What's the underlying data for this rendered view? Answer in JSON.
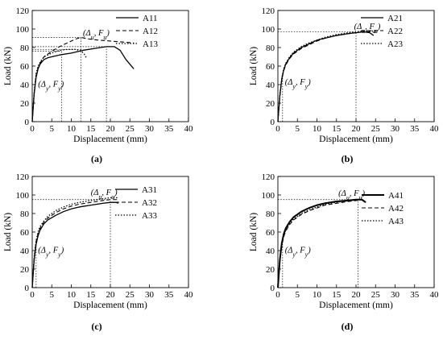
{
  "chart_data": [
    {
      "type": "line",
      "panel_label": "(a)",
      "xlabel": "Displacement (mm)",
      "ylabel": "Load (kN)",
      "xlim": [
        0,
        40
      ],
      "ylim": [
        0,
        120
      ],
      "xticks": [
        0,
        5,
        10,
        15,
        20,
        25,
        30,
        35,
        40
      ],
      "yticks": [
        0,
        20,
        40,
        60,
        80,
        100,
        120
      ],
      "legend_position": "top-right",
      "annotations": [
        {
          "label": "(Δu, Fu)",
          "x": 13,
          "y": 93
        },
        {
          "label": "(Δy, Fy)",
          "x": 1.5,
          "y": 38
        }
      ],
      "reference_lines": [
        {
          "y": 91,
          "x_end": 12.5
        },
        {
          "y": 81,
          "x_end": 19
        },
        {
          "y": 76,
          "x_end": 7.5
        },
        {
          "y": 78,
          "x_end": 13
        },
        {
          "x": 7.5,
          "y_end": 76
        },
        {
          "x": 12.5,
          "y_end": 91
        },
        {
          "x": 19,
          "y_end": 81
        }
      ],
      "series": [
        {
          "name": "A11",
          "style": "solid",
          "x": [
            0,
            0.5,
            1,
            1.5,
            2,
            3,
            4,
            5,
            7,
            10,
            13,
            16,
            19,
            21,
            22.5,
            24,
            26
          ],
          "y": [
            0,
            30,
            48,
            57,
            62,
            67,
            69,
            70,
            72,
            74,
            77,
            79,
            81,
            81,
            77,
            67,
            57
          ]
        },
        {
          "name": "A12",
          "style": "dashed",
          "x": [
            0,
            0.5,
            1,
            1.5,
            2,
            3,
            5,
            7,
            9,
            11,
            12.5,
            14,
            17,
            20,
            23,
            26
          ],
          "y": [
            0,
            30,
            50,
            58,
            63,
            70,
            76,
            81,
            85,
            89,
            91,
            89.5,
            88,
            87,
            86,
            85
          ]
        },
        {
          "name": "A13",
          "style": "dotted",
          "x": [
            0,
            0.5,
            1,
            1.5,
            2,
            3,
            5,
            7,
            9,
            11,
            12.5,
            13.3,
            14
          ],
          "y": [
            0,
            32,
            52,
            60,
            64,
            70,
            74,
            77,
            78,
            78,
            76.5,
            73,
            68
          ]
        }
      ]
    },
    {
      "type": "line",
      "panel_label": "(b)",
      "xlabel": "Displacement (mm)",
      "ylabel": "Load (kN)",
      "xlim": [
        0,
        40
      ],
      "ylim": [
        0,
        120
      ],
      "xticks": [
        0,
        5,
        10,
        15,
        20,
        25,
        30,
        35,
        40
      ],
      "yticks": [
        0,
        20,
        40,
        60,
        80,
        100,
        120
      ],
      "legend_position": "top-right",
      "annotations": [
        {
          "label": "(Δu, Fu)",
          "x": 19.5,
          "y": 100
        },
        {
          "label": "(Δy, Fy)",
          "x": 1.8,
          "y": 40
        }
      ],
      "reference_lines": [
        {
          "y": 97,
          "x_end": 20
        },
        {
          "x": 20,
          "y_end": 97
        },
        {
          "x": 1.2,
          "y_end": 50
        }
      ],
      "series": [
        {
          "name": "A21",
          "style": "solid",
          "x": [
            0,
            0.5,
            1,
            1.5,
            2,
            3,
            4,
            6,
            8,
            10,
            12,
            15,
            18,
            20,
            22,
            23.5,
            24.5
          ],
          "y": [
            0,
            28,
            46,
            56,
            62,
            69,
            74,
            80,
            84,
            88,
            90,
            93,
            95,
            96,
            97,
            96,
            93
          ]
        },
        {
          "name": "A22",
          "style": "dashed",
          "x": [
            0,
            0.5,
            1,
            1.5,
            2,
            3,
            4,
            6,
            8,
            10,
            12,
            15,
            18,
            20,
            22,
            24,
            25
          ],
          "y": [
            0,
            27,
            45,
            55,
            61,
            68,
            73,
            79,
            83,
            87,
            90,
            93,
            95,
            96,
            97,
            97,
            96
          ]
        },
        {
          "name": "A23",
          "style": "dotted",
          "x": [
            0,
            0.5,
            1,
            1.5,
            2,
            3,
            4,
            6,
            8,
            10,
            12,
            15,
            18,
            20,
            22,
            24,
            25.5
          ],
          "y": [
            0,
            29,
            47,
            57,
            63,
            70,
            75,
            81,
            85,
            88,
            91,
            94,
            96,
            97,
            98,
            98,
            97
          ]
        }
      ]
    },
    {
      "type": "line",
      "panel_label": "(c)",
      "xlabel": "Displacement (mm)",
      "ylabel": "Load (kN)",
      "xlim": [
        0,
        40
      ],
      "ylim": [
        0,
        120
      ],
      "xticks": [
        0,
        5,
        10,
        15,
        20,
        25,
        30,
        35,
        40
      ],
      "yticks": [
        0,
        20,
        40,
        60,
        80,
        100,
        120
      ],
      "legend_position": "top-right",
      "annotations": [
        {
          "label": "(Δu, Fu)",
          "x": 15,
          "y": 100
        },
        {
          "label": "(Δy, Fy)",
          "x": 1.5,
          "y": 38
        }
      ],
      "reference_lines": [
        {
          "y": 95,
          "x_end": 20
        },
        {
          "x": 20,
          "y_end": 95
        },
        {
          "x": 1.0,
          "y_end": 50
        }
      ],
      "series": [
        {
          "name": "A31",
          "style": "solid",
          "x": [
            0,
            0.5,
            1,
            1.5,
            2,
            3,
            4,
            6,
            8,
            10,
            12,
            15,
            18,
            20,
            21.5,
            22
          ],
          "y": [
            0,
            30,
            47,
            56,
            62,
            69,
            73,
            78,
            82,
            85,
            87,
            89,
            91,
            92,
            92,
            91
          ]
        },
        {
          "name": "A32",
          "style": "dashed",
          "x": [
            0,
            0.5,
            1,
            1.5,
            2,
            3,
            4,
            6,
            8,
            10,
            12,
            15,
            18,
            20,
            22
          ],
          "y": [
            0,
            32,
            50,
            58,
            64,
            71,
            75,
            81,
            85,
            88,
            90,
            92,
            94,
            95,
            95
          ]
        },
        {
          "name": "A33",
          "style": "dotted",
          "x": [
            0,
            0.5,
            1,
            1.5,
            2,
            3,
            4,
            6,
            8,
            10,
            12,
            15,
            18,
            20,
            22
          ],
          "y": [
            0,
            33,
            51,
            60,
            66,
            72,
            77,
            83,
            87,
            90,
            92,
            94,
            96,
            97,
            97
          ]
        }
      ]
    },
    {
      "type": "line",
      "panel_label": "(d)",
      "xlabel": "Displacement (mm)",
      "ylabel": "Load (kN)",
      "xlim": [
        0,
        40
      ],
      "ylim": [
        0,
        120
      ],
      "xticks": [
        0,
        5,
        10,
        15,
        20,
        25,
        30,
        35,
        40
      ],
      "yticks": [
        0,
        20,
        40,
        60,
        80,
        100,
        120
      ],
      "legend_position": "top-right",
      "annotations": [
        {
          "label": "(Δu, Fu)",
          "x": 15.5,
          "y": 99
        },
        {
          "label": "(Δy, Fy)",
          "x": 1.8,
          "y": 38
        }
      ],
      "reference_lines": [
        {
          "y": 95,
          "x_end": 20.5
        },
        {
          "x": 20.5,
          "y_end": 95
        },
        {
          "x": 1.2,
          "y_end": 50
        }
      ],
      "series": [
        {
          "name": "A41",
          "style": "solid-thick",
          "x": [
            0,
            0.5,
            1,
            1.5,
            2,
            3,
            4,
            6,
            8,
            10,
            12,
            15,
            18,
            20,
            21.5,
            22.5
          ],
          "y": [
            0,
            30,
            48,
            58,
            64,
            71,
            76,
            82,
            86,
            89,
            91,
            93,
            94,
            95,
            95,
            92
          ]
        },
        {
          "name": "A42",
          "style": "dashed",
          "x": [
            0,
            0.5,
            1,
            1.5,
            2,
            3,
            4,
            6,
            8,
            10,
            12,
            15,
            18,
            20,
            21.5
          ],
          "y": [
            0,
            28,
            45,
            55,
            61,
            68,
            73,
            79,
            83,
            86,
            89,
            91,
            93,
            94,
            95
          ]
        },
        {
          "name": "A43",
          "style": "dotted",
          "x": [
            0,
            0.5,
            1,
            1.5,
            2,
            3,
            4,
            6,
            8,
            10,
            12,
            15,
            18,
            20,
            21.5
          ],
          "y": [
            0,
            29,
            46,
            56,
            62,
            69,
            74,
            80,
            84,
            87,
            90,
            92,
            94,
            95,
            96
          ]
        }
      ]
    }
  ]
}
